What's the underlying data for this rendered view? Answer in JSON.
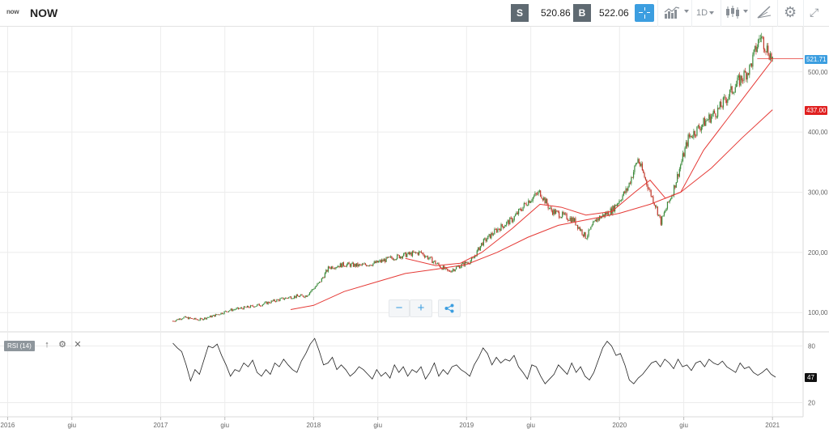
{
  "header": {
    "logo_text": "now",
    "symbol": "NOW",
    "sell_label": "S",
    "sell_price": "520.86",
    "buy_label": "B",
    "buy_price": "522.06",
    "interval": "1D",
    "icons": {
      "crosshair": "crosshair-icon",
      "chart_style": "area-chart-icon",
      "candles": "candlestick-icon",
      "draw": "drawing-tools-icon",
      "settings": "gear-icon",
      "expand": "expand-icon"
    }
  },
  "zoom_controls": {
    "zoom_out": "−",
    "zoom_in": "+",
    "share_icon": "share-icon"
  },
  "rsi_panel": {
    "label": "RSI (14)",
    "icons": [
      "arrow-up-icon",
      "gear-icon",
      "close-icon"
    ],
    "current_value": "47"
  },
  "price_tags": {
    "current": "521.71",
    "ma": "437.00"
  },
  "chart_data": [
    {
      "type": "candlestick",
      "x_axis_labels": [
        "2016",
        "giu",
        "2017",
        "giu",
        "2018",
        "giu",
        "2019",
        "giu",
        "2020",
        "giu",
        "2021"
      ],
      "y_ticks": [
        100,
        200,
        300,
        400,
        500
      ],
      "y_tick_labels": [
        "100,00",
        "200,00",
        "300,00",
        "400,00",
        "500,00"
      ],
      "ylim": [
        68,
        575
      ],
      "xlim": [
        2015.95,
        2021.2
      ],
      "grid": true,
      "colors": {
        "up": "#3a8a3a",
        "down": "#c0392b",
        "ma": "#e53935",
        "current": "#3c9ee0"
      },
      "series": [
        {
          "type": "price",
          "x": [
            2017.08,
            2017.15,
            2017.25,
            2017.35,
            2017.45,
            2017.55,
            2017.65,
            2017.75,
            2017.85,
            2017.95,
            2018.04,
            2018.1,
            2018.2,
            2018.3,
            2018.4,
            2018.5,
            2018.6,
            2018.7,
            2018.8,
            2018.88,
            2018.96,
            2019.04,
            2019.1,
            2019.2,
            2019.3,
            2019.4,
            2019.48,
            2019.55,
            2019.62,
            2019.7,
            2019.78,
            2019.85,
            2019.95,
            2020.05,
            2020.12,
            2020.2,
            2020.24,
            2020.27,
            2020.35,
            2020.45,
            2020.55,
            2020.65,
            2020.75,
            2020.85,
            2020.92,
            2021.0
          ],
          "y": [
            86,
            92,
            88,
            95,
            104,
            108,
            113,
            120,
            126,
            128,
            150,
            175,
            180,
            178,
            182,
            190,
            196,
            200,
            182,
            168,
            178,
            188,
            215,
            238,
            255,
            285,
            300,
            270,
            262,
            254,
            225,
            255,
            270,
            305,
            355,
            300,
            275,
            250,
            302,
            390,
            415,
            438,
            475,
            505,
            560,
            521
          ]
        },
        {
          "type": "ma_short",
          "x": [
            2018.6,
            2018.8,
            2018.96,
            2019.1,
            2019.3,
            2019.48,
            2019.62,
            2019.78,
            2019.95,
            2020.1,
            2020.2,
            2020.3,
            2020.4,
            2020.55,
            2020.7,
            2020.85,
            2021.0
          ],
          "y": [
            190,
            178,
            182,
            200,
            240,
            280,
            275,
            262,
            268,
            300,
            320,
            290,
            300,
            370,
            420,
            470,
            520
          ]
        },
        {
          "type": "ma_long",
          "x": [
            2017.85,
            2018.0,
            2018.2,
            2018.4,
            2018.6,
            2018.8,
            2019.0,
            2019.2,
            2019.4,
            2019.6,
            2019.8,
            2020.0,
            2020.2,
            2020.4,
            2020.6,
            2020.8,
            2021.0
          ],
          "y": [
            105,
            112,
            135,
            150,
            165,
            172,
            180,
            200,
            225,
            245,
            255,
            265,
            280,
            300,
            340,
            390,
            437
          ]
        }
      ]
    },
    {
      "type": "line",
      "title": "RSI (14)",
      "y_ticks": [
        20,
        80
      ],
      "y_tick_labels": [
        "20",
        "80"
      ],
      "ylim": [
        5,
        95
      ],
      "xlim": [
        2015.95,
        2021.2
      ],
      "grid": true,
      "series": [
        {
          "values": [
            83,
            78,
            74,
            60,
            43,
            55,
            50,
            65,
            80,
            78,
            82,
            70,
            60,
            48,
            55,
            53,
            62,
            58,
            65,
            52,
            48,
            55,
            50,
            62,
            58,
            66,
            60,
            55,
            52,
            64,
            72,
            82,
            88,
            75,
            60,
            62,
            68,
            55,
            60,
            55,
            48,
            52,
            58,
            55,
            50,
            45,
            55,
            48,
            52,
            46,
            60,
            52,
            58,
            48,
            55,
            52,
            58,
            45,
            52,
            62,
            48,
            55,
            50,
            58,
            60,
            55,
            52,
            48,
            60,
            68,
            78,
            72,
            60,
            68,
            62,
            66,
            64,
            70,
            58,
            52,
            45,
            60,
            58,
            48,
            40,
            45,
            50,
            60,
            55,
            50,
            62,
            52,
            58,
            48,
            44,
            52,
            65,
            78,
            85,
            80,
            70,
            72,
            60,
            44,
            40,
            46,
            50,
            56,
            62,
            64,
            58,
            66,
            62,
            56,
            66,
            58,
            60,
            54,
            62,
            64,
            58,
            66,
            62,
            60,
            64,
            58,
            55,
            52,
            62,
            56,
            58,
            52,
            49,
            52,
            56,
            50,
            47
          ],
          "x_start": 2017.08,
          "x_end": 2021.02
        }
      ]
    }
  ]
}
